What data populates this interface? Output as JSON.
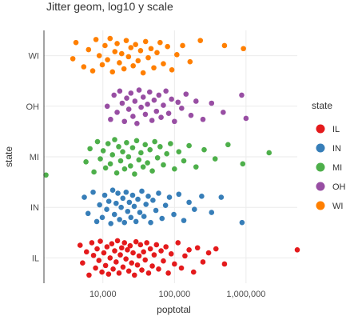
{
  "chart_data": {
    "type": "scatter",
    "title": "Jitter geom, log10 y scale",
    "xlabel": "poptotal",
    "ylabel": "state",
    "x_scale": "log10",
    "xlim": [
      1500,
      5200000
    ],
    "x_ticks": [
      {
        "value": 10000,
        "label": "10,000"
      },
      {
        "value": 100000,
        "label": "100,000"
      },
      {
        "value": 1000000,
        "label": "1,000,000"
      }
    ],
    "categories": [
      "IL",
      "IN",
      "MI",
      "OH",
      "WI"
    ],
    "grid": true,
    "legend": {
      "title": "state",
      "position": "right"
    },
    "series": [
      {
        "name": "IL",
        "color": "#E41A1C",
        "points": [
          {
            "x": 4800,
            "y": 0.25
          },
          {
            "x": 5200,
            "y": -0.1
          },
          {
            "x": 5900,
            "y": 0.12
          },
          {
            "x": 6400,
            "y": -0.34
          },
          {
            "x": 7000,
            "y": 0.3
          },
          {
            "x": 7400,
            "y": 0.05
          },
          {
            "x": 7900,
            "y": -0.2
          },
          {
            "x": 8300,
            "y": 0.18
          },
          {
            "x": 8800,
            "y": -0.05
          },
          {
            "x": 9200,
            "y": 0.33
          },
          {
            "x": 9700,
            "y": -0.28
          },
          {
            "x": 10300,
            "y": 0.1
          },
          {
            "x": 10900,
            "y": -0.15
          },
          {
            "x": 11400,
            "y": 0.22
          },
          {
            "x": 12000,
            "y": -0.32
          },
          {
            "x": 12600,
            "y": 0.0
          },
          {
            "x": 13300,
            "y": 0.28
          },
          {
            "x": 13900,
            "y": -0.22
          },
          {
            "x": 14600,
            "y": 0.14
          },
          {
            "x": 15300,
            "y": -0.08
          },
          {
            "x": 16000,
            "y": 0.34
          },
          {
            "x": 16800,
            "y": -0.3
          },
          {
            "x": 17500,
            "y": 0.06
          },
          {
            "x": 18300,
            "y": 0.2
          },
          {
            "x": 19100,
            "y": -0.18
          },
          {
            "x": 20000,
            "y": 0.3
          },
          {
            "x": 21000,
            "y": -0.02
          },
          {
            "x": 22000,
            "y": 0.16
          },
          {
            "x": 23000,
            "y": -0.26
          },
          {
            "x": 24000,
            "y": 0.24
          },
          {
            "x": 25200,
            "y": -0.1
          },
          {
            "x": 26400,
            "y": 0.1
          },
          {
            "x": 27600,
            "y": -0.34
          },
          {
            "x": 29000,
            "y": 0.32
          },
          {
            "x": 30400,
            "y": -0.14
          },
          {
            "x": 32000,
            "y": 0.04
          },
          {
            "x": 33500,
            "y": 0.26
          },
          {
            "x": 35000,
            "y": -0.24
          },
          {
            "x": 37000,
            "y": 0.12
          },
          {
            "x": 39000,
            "y": -0.04
          },
          {
            "x": 41000,
            "y": 0.3
          },
          {
            "x": 43500,
            "y": -0.3
          },
          {
            "x": 46000,
            "y": 0.18
          },
          {
            "x": 49000,
            "y": -0.16
          },
          {
            "x": 52000,
            "y": 0.06
          },
          {
            "x": 56000,
            "y": 0.26
          },
          {
            "x": 60000,
            "y": -0.22
          },
          {
            "x": 65000,
            "y": 0.14
          },
          {
            "x": 70000,
            "y": -0.06
          },
          {
            "x": 76000,
            "y": 0.22
          },
          {
            "x": 82000,
            "y": -0.3
          },
          {
            "x": 90000,
            "y": 0.08
          },
          {
            "x": 100000,
            "y": -0.12
          },
          {
            "x": 112000,
            "y": 0.3
          },
          {
            "x": 125000,
            "y": -0.2
          },
          {
            "x": 140000,
            "y": 0.04
          },
          {
            "x": 160000,
            "y": 0.16
          },
          {
            "x": 185000,
            "y": -0.28
          },
          {
            "x": 210000,
            "y": 0.2
          },
          {
            "x": 250000,
            "y": -0.08
          },
          {
            "x": 300000,
            "y": 0.1
          },
          {
            "x": 380000,
            "y": 0.18
          },
          {
            "x": 500000,
            "y": -0.12
          },
          {
            "x": 5200000,
            "y": 0.16
          }
        ]
      },
      {
        "name": "IN",
        "color": "#377EB8",
        "points": [
          {
            "x": 5500,
            "y": 0.2
          },
          {
            "x": 6200,
            "y": -0.12
          },
          {
            "x": 7300,
            "y": 0.3
          },
          {
            "x": 8200,
            "y": -0.28
          },
          {
            "x": 9000,
            "y": 0.05
          },
          {
            "x": 9800,
            "y": -0.2
          },
          {
            "x": 10600,
            "y": 0.24
          },
          {
            "x": 11300,
            "y": -0.04
          },
          {
            "x": 12100,
            "y": 0.12
          },
          {
            "x": 12900,
            "y": -0.32
          },
          {
            "x": 13700,
            "y": 0.34
          },
          {
            "x": 14500,
            "y": -0.14
          },
          {
            "x": 15300,
            "y": 0.08
          },
          {
            "x": 16200,
            "y": 0.28
          },
          {
            "x": 17100,
            "y": -0.24
          },
          {
            "x": 18000,
            "y": 0.0
          },
          {
            "x": 19000,
            "y": 0.18
          },
          {
            "x": 20000,
            "y": -0.3
          },
          {
            "x": 21100,
            "y": 0.3
          },
          {
            "x": 22200,
            "y": -0.08
          },
          {
            "x": 23400,
            "y": 0.1
          },
          {
            "x": 24600,
            "y": -0.2
          },
          {
            "x": 26000,
            "y": 0.24
          },
          {
            "x": 27400,
            "y": 0.02
          },
          {
            "x": 29000,
            "y": -0.28
          },
          {
            "x": 30800,
            "y": 0.16
          },
          {
            "x": 32800,
            "y": -0.1
          },
          {
            "x": 35000,
            "y": 0.32
          },
          {
            "x": 37500,
            "y": -0.18
          },
          {
            "x": 40000,
            "y": 0.06
          },
          {
            "x": 43000,
            "y": 0.22
          },
          {
            "x": 46500,
            "y": -0.3
          },
          {
            "x": 50000,
            "y": 0.14
          },
          {
            "x": 55000,
            "y": -0.06
          },
          {
            "x": 60000,
            "y": 0.28
          },
          {
            "x": 67000,
            "y": -0.22
          },
          {
            "x": 75000,
            "y": 0.04
          },
          {
            "x": 85000,
            "y": 0.2
          },
          {
            "x": 98000,
            "y": -0.14
          },
          {
            "x": 115000,
            "y": 0.26
          },
          {
            "x": 135000,
            "y": -0.26
          },
          {
            "x": 160000,
            "y": 0.1
          },
          {
            "x": 190000,
            "y": -0.04
          },
          {
            "x": 240000,
            "y": 0.22
          },
          {
            "x": 330000,
            "y": -0.1
          },
          {
            "x": 450000,
            "y": 0.2
          },
          {
            "x": 880000,
            "y": -0.3
          }
        ]
      },
      {
        "name": "MI",
        "color": "#4DAF4A",
        "points": [
          {
            "x": 1600,
            "y": -0.36
          },
          {
            "x": 5800,
            "y": -0.1
          },
          {
            "x": 6600,
            "y": 0.16
          },
          {
            "x": 7500,
            "y": -0.3
          },
          {
            "x": 8400,
            "y": 0.3
          },
          {
            "x": 9200,
            "y": -0.04
          },
          {
            "x": 10100,
            "y": 0.12
          },
          {
            "x": 10900,
            "y": -0.22
          },
          {
            "x": 11800,
            "y": 0.26
          },
          {
            "x": 12700,
            "y": -0.14
          },
          {
            "x": 13600,
            "y": 0.04
          },
          {
            "x": 14600,
            "y": 0.34
          },
          {
            "x": 15600,
            "y": -0.32
          },
          {
            "x": 16600,
            "y": 0.2
          },
          {
            "x": 17700,
            "y": -0.08
          },
          {
            "x": 18900,
            "y": 0.1
          },
          {
            "x": 20100,
            "y": -0.24
          },
          {
            "x": 21400,
            "y": 0.28
          },
          {
            "x": 22800,
            "y": 0.0
          },
          {
            "x": 24300,
            "y": -0.18
          },
          {
            "x": 26000,
            "y": 0.18
          },
          {
            "x": 27700,
            "y": -0.34
          },
          {
            "x": 29600,
            "y": 0.32
          },
          {
            "x": 31800,
            "y": -0.06
          },
          {
            "x": 34000,
            "y": 0.08
          },
          {
            "x": 36500,
            "y": -0.2
          },
          {
            "x": 39000,
            "y": 0.24
          },
          {
            "x": 42000,
            "y": -0.12
          },
          {
            "x": 45500,
            "y": 0.14
          },
          {
            "x": 49000,
            "y": -0.28
          },
          {
            "x": 53000,
            "y": 0.3
          },
          {
            "x": 58000,
            "y": -0.02
          },
          {
            "x": 63000,
            "y": 0.2
          },
          {
            "x": 70000,
            "y": -0.16
          },
          {
            "x": 78000,
            "y": 0.06
          },
          {
            "x": 88000,
            "y": 0.26
          },
          {
            "x": 100000,
            "y": -0.24
          },
          {
            "x": 115000,
            "y": 0.1
          },
          {
            "x": 135000,
            "y": -0.08
          },
          {
            "x": 160000,
            "y": 0.22
          },
          {
            "x": 200000,
            "y": -0.2
          },
          {
            "x": 260000,
            "y": 0.14
          },
          {
            "x": 370000,
            "y": -0.04
          },
          {
            "x": 560000,
            "y": 0.24
          },
          {
            "x": 900000,
            "y": -0.14
          },
          {
            "x": 2100000,
            "y": 0.08
          }
        ]
      },
      {
        "name": "OH",
        "color": "#984EA3",
        "points": [
          {
            "x": 11500,
            "y": 0.0
          },
          {
            "x": 12800,
            "y": -0.26
          },
          {
            "x": 14300,
            "y": 0.22
          },
          {
            "x": 15800,
            "y": -0.12
          },
          {
            "x": 17200,
            "y": 0.3
          },
          {
            "x": 18600,
            "y": 0.06
          },
          {
            "x": 20000,
            "y": -0.3
          },
          {
            "x": 21500,
            "y": 0.16
          },
          {
            "x": 23000,
            "y": -0.06
          },
          {
            "x": 24600,
            "y": 0.26
          },
          {
            "x": 26300,
            "y": -0.2
          },
          {
            "x": 28000,
            "y": 0.1
          },
          {
            "x": 29900,
            "y": -0.34
          },
          {
            "x": 32000,
            "y": 0.32
          },
          {
            "x": 34200,
            "y": -0.02
          },
          {
            "x": 36600,
            "y": 0.18
          },
          {
            "x": 39200,
            "y": -0.16
          },
          {
            "x": 42000,
            "y": 0.04
          },
          {
            "x": 45000,
            "y": 0.28
          },
          {
            "x": 48500,
            "y": -0.28
          },
          {
            "x": 52000,
            "y": 0.12
          },
          {
            "x": 56000,
            "y": -0.1
          },
          {
            "x": 60500,
            "y": 0.22
          },
          {
            "x": 65000,
            "y": -0.22
          },
          {
            "x": 70000,
            "y": 0.02
          },
          {
            "x": 76000,
            "y": 0.3
          },
          {
            "x": 83000,
            "y": -0.14
          },
          {
            "x": 91000,
            "y": 0.14
          },
          {
            "x": 100000,
            "y": -0.3
          },
          {
            "x": 112000,
            "y": 0.08
          },
          {
            "x": 126000,
            "y": -0.04
          },
          {
            "x": 145000,
            "y": 0.24
          },
          {
            "x": 170000,
            "y": -0.18
          },
          {
            "x": 200000,
            "y": 0.1
          },
          {
            "x": 250000,
            "y": -0.26
          },
          {
            "x": 330000,
            "y": 0.06
          },
          {
            "x": 480000,
            "y": -0.12
          },
          {
            "x": 870000,
            "y": 0.22
          },
          {
            "x": 1000000,
            "y": -0.24
          }
        ]
      },
      {
        "name": "WI",
        "color": "#FF7F00",
        "points": [
          {
            "x": 3800,
            "y": -0.06
          },
          {
            "x": 4200,
            "y": 0.26
          },
          {
            "x": 5400,
            "y": -0.22
          },
          {
            "x": 6300,
            "y": 0.12
          },
          {
            "x": 7200,
            "y": -0.3
          },
          {
            "x": 8000,
            "y": 0.32
          },
          {
            "x": 8900,
            "y": 0.0
          },
          {
            "x": 9800,
            "y": -0.18
          },
          {
            "x": 10700,
            "y": 0.2
          },
          {
            "x": 11600,
            "y": -0.08
          },
          {
            "x": 12600,
            "y": 0.34
          },
          {
            "x": 13600,
            "y": -0.32
          },
          {
            "x": 14700,
            "y": 0.08
          },
          {
            "x": 15800,
            "y": 0.24
          },
          {
            "x": 17000,
            "y": -0.14
          },
          {
            "x": 18300,
            "y": 0.04
          },
          {
            "x": 19700,
            "y": -0.26
          },
          {
            "x": 21200,
            "y": 0.3
          },
          {
            "x": 22800,
            "y": -0.02
          },
          {
            "x": 24600,
            "y": 0.16
          },
          {
            "x": 26500,
            "y": -0.2
          },
          {
            "x": 28600,
            "y": 0.22
          },
          {
            "x": 31000,
            "y": -0.1
          },
          {
            "x": 33600,
            "y": 0.1
          },
          {
            "x": 36500,
            "y": -0.34
          },
          {
            "x": 39500,
            "y": 0.28
          },
          {
            "x": 43000,
            "y": -0.04
          },
          {
            "x": 47000,
            "y": 0.14
          },
          {
            "x": 51500,
            "y": -0.24
          },
          {
            "x": 57000,
            "y": 0.06
          },
          {
            "x": 63000,
            "y": 0.26
          },
          {
            "x": 70000,
            "y": -0.16
          },
          {
            "x": 80000,
            "y": 0.18
          },
          {
            "x": 92000,
            "y": -0.28
          },
          {
            "x": 108000,
            "y": 0.02
          },
          {
            "x": 130000,
            "y": 0.2
          },
          {
            "x": 165000,
            "y": -0.12
          },
          {
            "x": 230000,
            "y": 0.3
          },
          {
            "x": 500000,
            "y": 0.2
          },
          {
            "x": 920000,
            "y": 0.14
          }
        ]
      }
    ]
  }
}
